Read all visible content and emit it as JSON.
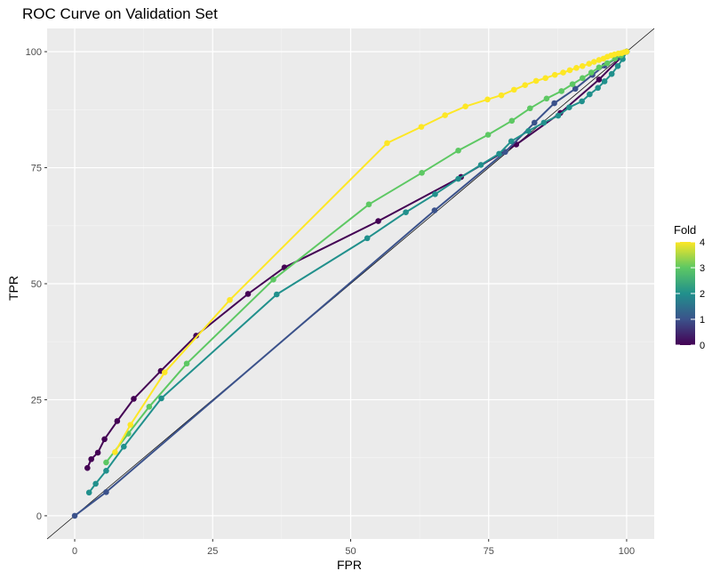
{
  "chart_data": {
    "type": "line",
    "title": "ROC Curve on Validation Set",
    "xlabel": "FPR",
    "ylabel": "TPR",
    "xlim": [
      -5,
      105
    ],
    "ylim": [
      -5,
      105
    ],
    "x_ticks": [
      0,
      25,
      50,
      75,
      100
    ],
    "y_ticks": [
      0,
      25,
      50,
      75,
      100
    ],
    "x_tick_labels": [
      "0",
      "25",
      "50",
      "75",
      "100"
    ],
    "y_tick_labels": [
      "0",
      "25",
      "50",
      "75",
      "100"
    ],
    "grid": true,
    "reference_line": "y = x",
    "legend": {
      "title": "Fold",
      "placement": "right",
      "type": "colorbar",
      "range": [
        0,
        4
      ],
      "labels": [
        "0",
        "1",
        "2",
        "3",
        "4"
      ]
    },
    "colors": {
      "panel": "#ebebeb",
      "grid_major": "#ffffff",
      "grid_minor": "#f5f5f5",
      "fold0": "#440154",
      "fold1": "#3b528b",
      "fold2": "#21908c",
      "fold3": "#5dc863",
      "fold4": "#fde725"
    },
    "series": [
      {
        "fold": 0,
        "color": "#440154",
        "x": [
          2.3,
          3.0,
          4.2,
          5.4,
          7.7,
          10.7,
          15.6,
          22.0,
          31.4,
          38.0,
          55.0,
          70.0,
          80.0,
          88.0,
          95.0,
          100.0
        ],
        "y": [
          10.3,
          12.2,
          13.6,
          16.5,
          20.4,
          25.2,
          31.2,
          38.8,
          47.8,
          53.5,
          63.5,
          73.0,
          80.0,
          86.8,
          94.0,
          100.0
        ]
      },
      {
        "fold": 1,
        "color": "#3b528b",
        "x": [
          0.0,
          5.7,
          65.2,
          78.0,
          83.3,
          86.9,
          90.7,
          93.8,
          96.0,
          98.5,
          100.0
        ],
        "y": [
          0.0,
          5.1,
          65.8,
          78.4,
          84.7,
          88.9,
          92.0,
          95.0,
          97.0,
          98.8,
          100.0
        ]
      },
      {
        "fold": 2,
        "color": "#21908c",
        "x": [
          2.6,
          3.8,
          5.7,
          8.9,
          15.7,
          36.6,
          53.0,
          60.0,
          65.3,
          69.5,
          73.6,
          76.9,
          79.1,
          82.2,
          85.0,
          87.6,
          89.6,
          91.9,
          93.3,
          94.8,
          96.0,
          97.3,
          98.4,
          99.3,
          100.0
        ],
        "y": [
          5.0,
          6.9,
          9.7,
          14.9,
          25.3,
          47.7,
          59.8,
          65.4,
          69.3,
          72.6,
          75.6,
          78.0,
          80.7,
          82.9,
          84.7,
          86.2,
          88.0,
          89.3,
          90.8,
          92.2,
          93.6,
          95.2,
          96.9,
          98.4,
          100.0
        ]
      },
      {
        "fold": 3,
        "color": "#5dc863",
        "x": [
          5.7,
          9.7,
          13.5,
          20.3,
          36.0,
          53.3,
          62.9,
          69.5,
          74.9,
          79.2,
          82.5,
          85.5,
          88.2,
          90.2,
          92.0,
          93.6,
          95.0,
          96.5,
          97.9,
          99.0,
          100.0
        ],
        "y": [
          11.5,
          17.7,
          23.5,
          32.8,
          50.9,
          67.1,
          73.9,
          78.7,
          82.1,
          85.1,
          87.8,
          89.9,
          91.5,
          93.0,
          94.3,
          95.5,
          96.6,
          97.5,
          98.5,
          99.2,
          100.0
        ]
      },
      {
        "fold": 4,
        "color": "#fde725",
        "x": [
          7.3,
          10.1,
          16.3,
          28.1,
          56.6,
          62.8,
          67.1,
          70.8,
          74.8,
          77.3,
          79.6,
          81.6,
          83.6,
          85.3,
          87.0,
          88.5,
          89.7,
          90.9,
          92.0,
          93.2,
          94.1,
          95.0,
          95.8,
          96.5,
          97.2,
          97.8,
          98.5,
          99.1,
          99.6,
          100.0
        ],
        "y": [
          13.7,
          19.6,
          30.9,
          46.5,
          80.3,
          83.8,
          86.3,
          88.2,
          89.7,
          90.6,
          91.8,
          92.8,
          93.7,
          94.3,
          95.0,
          95.5,
          96.0,
          96.5,
          96.9,
          97.4,
          97.8,
          98.2,
          98.5,
          98.9,
          99.2,
          99.4,
          99.6,
          99.7,
          99.9,
          100.0
        ]
      }
    ]
  }
}
